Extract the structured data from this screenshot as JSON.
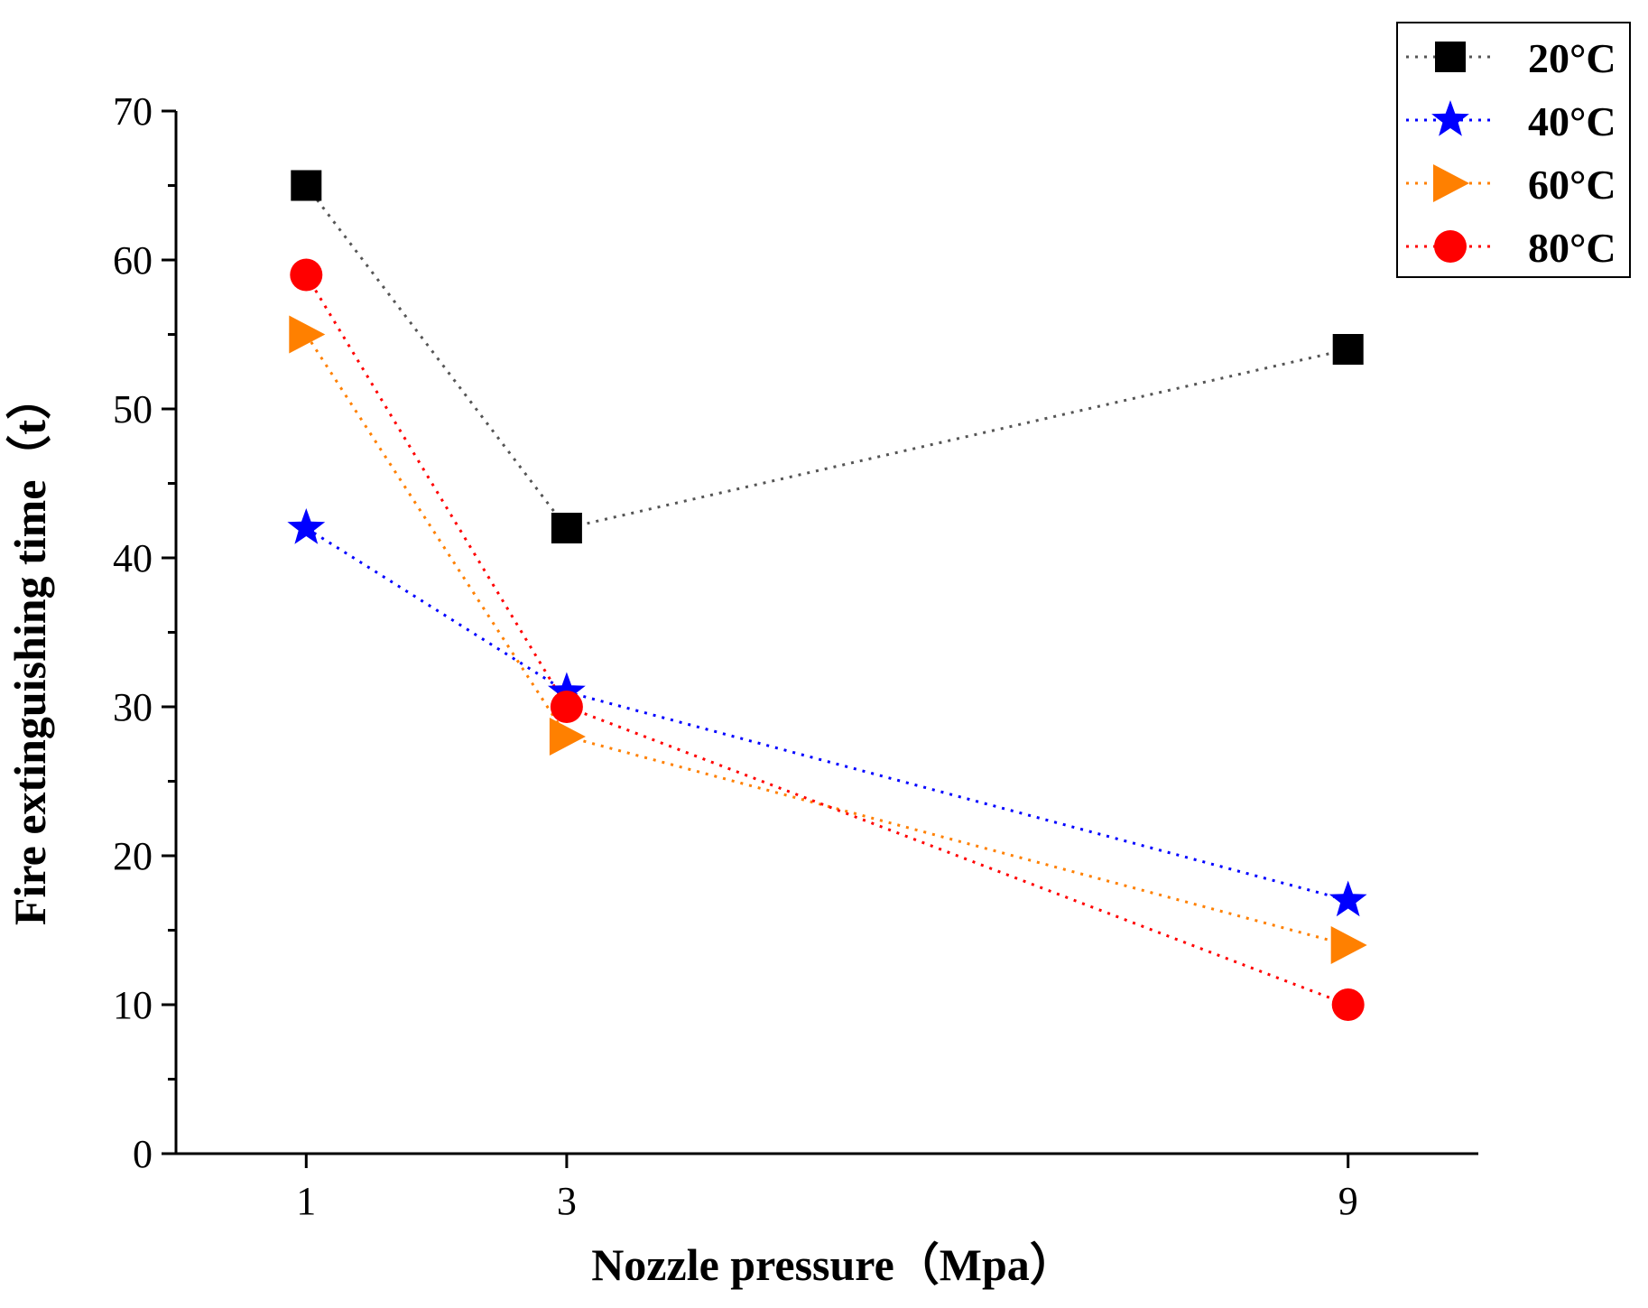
{
  "chart_data": {
    "type": "line",
    "xlabel": "Nozzle pressure（Mpa）",
    "ylabel": "Fire extinguishing time（t）",
    "x_categories": [
      "1",
      "3",
      "9"
    ],
    "x_positions": [
      1,
      2,
      5
    ],
    "xlim": [
      0.5,
      5.5
    ],
    "ylim": [
      0,
      70
    ],
    "y_ticks": [
      0,
      10,
      20,
      30,
      40,
      50,
      60,
      70
    ],
    "y_tick_labels": [
      "0",
      "10",
      "20",
      "30",
      "40",
      "50",
      "60",
      "70"
    ],
    "grid": false,
    "legend_position": "top-right",
    "line_style": "dotted",
    "series": [
      {
        "name": "20°C",
        "marker": "square",
        "color": "#000000",
        "line_color": "#555555",
        "values": [
          65,
          42,
          54
        ]
      },
      {
        "name": "40°C",
        "marker": "star",
        "color": "#0000ff",
        "line_color": "#0000ff",
        "values": [
          42,
          31,
          17
        ]
      },
      {
        "name": "60°C",
        "marker": "triangle-right",
        "color": "#ff8000",
        "line_color": "#ff8000",
        "values": [
          55,
          28,
          14
        ]
      },
      {
        "name": "80°C",
        "marker": "circle",
        "color": "#ff0000",
        "line_color": "#ff0000",
        "values": [
          59,
          30,
          10
        ]
      }
    ]
  }
}
